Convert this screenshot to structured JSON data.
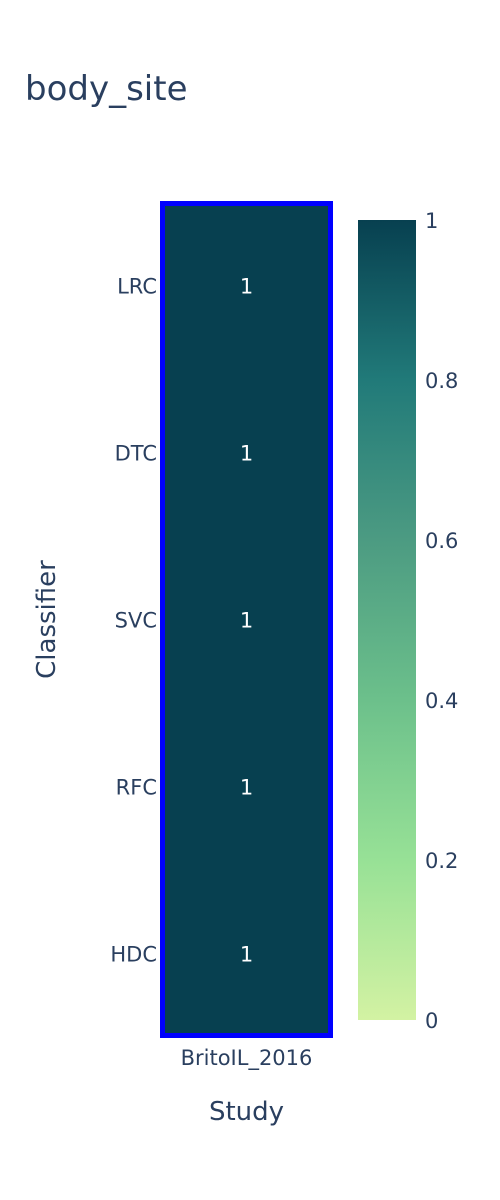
{
  "chart_data": {
    "type": "heatmap",
    "title": "body_site",
    "xlabel": "Study",
    "ylabel": "Classifier",
    "x_categories": [
      "BritoIL_2016"
    ],
    "y_categories": [
      "LRC",
      "DTC",
      "SVC",
      "RFC",
      "HDC"
    ],
    "z": [
      [
        1
      ],
      [
        1
      ],
      [
        1
      ],
      [
        1
      ],
      [
        1
      ]
    ],
    "cell_text": [
      [
        "1"
      ],
      [
        "1"
      ],
      [
        "1"
      ],
      [
        "1"
      ],
      [
        "1"
      ]
    ],
    "colorscale": {
      "stops": [
        {
          "value": 0,
          "color": "#d3f2a3"
        },
        {
          "value": 0.2,
          "color": "#97e196"
        },
        {
          "value": 0.4,
          "color": "#6cc08b"
        },
        {
          "value": 0.6,
          "color": "#4c9b82"
        },
        {
          "value": 0.8,
          "color": "#217a79"
        },
        {
          "value": 1.0,
          "color": "#074050"
        }
      ]
    },
    "zlim": [
      0,
      1
    ],
    "colorbar_ticks": [
      {
        "value": 0,
        "label": "0"
      },
      {
        "value": 0.2,
        "label": "0.2"
      },
      {
        "value": 0.4,
        "label": "0.4"
      },
      {
        "value": 0.6,
        "label": "0.6"
      },
      {
        "value": 0.8,
        "label": "0.8"
      },
      {
        "value": 1,
        "label": "1"
      }
    ],
    "highlight_color": "#0000ff"
  }
}
